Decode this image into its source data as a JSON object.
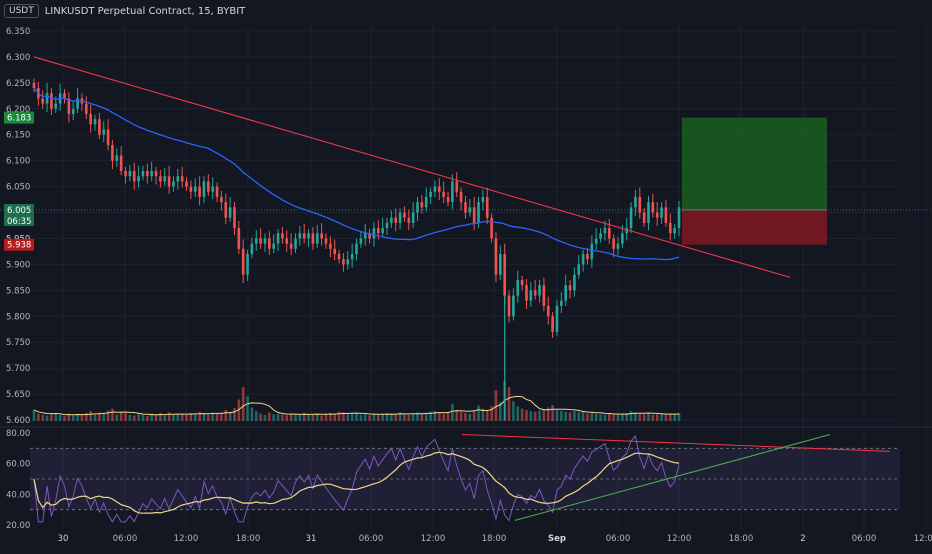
{
  "header": {
    "currency": "USDT",
    "symbol_line": "LINKUSDT Perpetual Contract, 15, BYBIT"
  },
  "colors": {
    "background": "#131722",
    "up": "#26a69a",
    "down": "#ef5350",
    "trendline": "#f23645",
    "ma": "#2962ff",
    "rsi": "#7e57c2",
    "rsi_ma": "#f0d78c",
    "vol_ma": "#f0d78c",
    "rsi_band": "#7e57c2",
    "support": "#4caf50",
    "target_zone": "#1b5e20",
    "stop_zone": "#801922"
  },
  "badges": {
    "target": "6.183",
    "current": "6.005",
    "countdown": "06:35",
    "stop": "5.938",
    "clipped": "5.950"
  },
  "chart_data": {
    "type": "candlestick",
    "price_axis": {
      "ticks": [
        "6.350",
        "6.300",
        "6.250",
        "6.200",
        "6.150",
        "6.100",
        "6.050",
        "6.000",
        "5.950",
        "5.900",
        "5.850",
        "5.800",
        "5.750",
        "5.700",
        "5.650",
        "5.600"
      ],
      "ylim": [
        5.6,
        6.35
      ]
    },
    "rsi_axis": {
      "ticks": [
        "80.00",
        "60.00",
        "40.00",
        "20.00"
      ],
      "ylim": [
        20,
        80
      ],
      "upper": 70,
      "mid": 50,
      "lower": 30
    },
    "time_axis": {
      "ticks": [
        "30",
        "06:00",
        "12:00",
        "18:00",
        "31",
        "06:00",
        "12:00",
        "18:00",
        "Sep",
        "06:00",
        "12:00",
        "18:00",
        "2",
        "06:00",
        "12:00"
      ]
    },
    "closes": [
      6.24,
      6.22,
      6.21,
      6.23,
      6.2,
      6.21,
      6.23,
      6.22,
      6.19,
      6.2,
      6.22,
      6.21,
      6.19,
      6.17,
      6.18,
      6.15,
      6.16,
      6.13,
      6.1,
      6.11,
      6.08,
      6.07,
      6.08,
      6.06,
      6.07,
      6.08,
      6.07,
      6.08,
      6.07,
      6.06,
      6.07,
      6.05,
      6.06,
      6.07,
      6.06,
      6.05,
      6.04,
      6.05,
      6.03,
      6.06,
      6.04,
      6.05,
      6.03,
      6.02,
      5.99,
      6.01,
      5.97,
      5.93,
      5.88,
      5.92,
      5.94,
      5.95,
      5.94,
      5.95,
      5.93,
      5.94,
      5.96,
      5.95,
      5.94,
      5.93,
      5.95,
      5.96,
      5.95,
      5.96,
      5.94,
      5.96,
      5.95,
      5.94,
      5.93,
      5.92,
      5.91,
      5.9,
      5.91,
      5.92,
      5.94,
      5.95,
      5.96,
      5.95,
      5.97,
      5.96,
      5.97,
      5.98,
      5.99,
      5.98,
      6.0,
      5.99,
      5.98,
      6.0,
      6.02,
      6.01,
      6.03,
      6.04,
      6.05,
      6.04,
      6.03,
      6.02,
      6.06,
      6.04,
      6.02,
      6.0,
      6.01,
      5.98,
      6.02,
      6.03,
      5.99,
      5.95,
      5.88,
      5.92,
      5.84,
      5.8,
      5.84,
      5.87,
      5.86,
      5.83,
      5.85,
      5.84,
      5.86,
      5.82,
      5.8,
      5.77,
      5.82,
      5.83,
      5.86,
      5.85,
      5.88,
      5.9,
      5.92,
      5.91,
      5.94,
      5.95,
      5.96,
      5.97,
      5.95,
      5.93,
      5.94,
      5.96,
      5.97,
      6.01,
      6.03,
      6.0,
      5.98,
      6.02,
      6.0,
      5.99,
      6.01,
      5.98,
      5.96,
      5.97,
      6.01
    ],
    "volumes": [
      1.8,
      1.2,
      1.0,
      0.9,
      1.1,
      1.3,
      1.0,
      0.8,
      1.2,
      0.9,
      1.1,
      1.0,
      1.3,
      1.6,
      1.0,
      1.4,
      1.2,
      1.7,
      2.0,
      1.1,
      1.5,
      1.3,
      1.0,
      0.9,
      1.1,
      1.0,
      0.8,
      1.2,
      1.0,
      1.3,
      0.9,
      1.4,
      1.0,
      1.1,
      1.2,
      1.0,
      1.3,
      1.1,
      1.5,
      1.2,
      1.0,
      1.4,
      1.2,
      1.3,
      1.8,
      1.5,
      2.1,
      3.5,
      5.5,
      4.0,
      2.2,
      1.6,
      1.2,
      1.0,
      1.4,
      1.1,
      1.2,
      1.0,
      0.9,
      1.2,
      1.1,
      1.0,
      1.3,
      1.0,
      1.1,
      1.2,
      0.9,
      1.1,
      1.3,
      1.2,
      1.5,
      1.4,
      1.1,
      1.2,
      1.3,
      1.0,
      1.1,
      0.9,
      1.2,
      1.0,
      1.1,
      1.3,
      1.2,
      1.0,
      1.4,
      1.1,
      1.0,
      1.2,
      1.4,
      1.2,
      1.3,
      1.5,
      1.6,
      1.3,
      1.2,
      1.4,
      2.8,
      1.8,
      1.5,
      1.3,
      1.2,
      1.6,
      2.5,
      2.0,
      1.8,
      2.4,
      5.0,
      3.0,
      6.5,
      5.5,
      3.2,
      2.4,
      2.0,
      1.8,
      1.6,
      1.5,
      1.7,
      1.9,
      2.2,
      2.6,
      1.8,
      1.6,
      1.5,
      1.4,
      1.6,
      1.4,
      1.5,
      1.2,
      1.3,
      1.2,
      1.1,
      1.0,
      1.2,
      1.1,
      1.0,
      1.2,
      1.3,
      1.6,
      1.4,
      1.2,
      1.1,
      1.3,
      1.0,
      1.1,
      1.2,
      1.0,
      1.1,
      1.2,
      1.3
    ]
  }
}
